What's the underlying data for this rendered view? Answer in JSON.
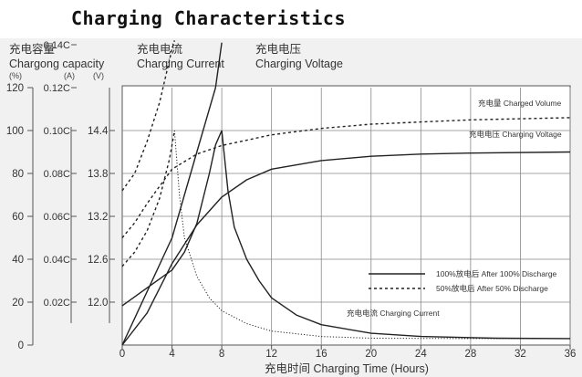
{
  "heading": "Charging Characteristics",
  "chart_data": {
    "type": "line",
    "title": "Charging Characteristics",
    "axes": {
      "capacity": {
        "label_cn": "充电容量",
        "label_en": "Chargong capacity",
        "unit": "(%)",
        "ticks": [
          "0",
          "20",
          "40",
          "60",
          "80",
          "100",
          "120"
        ],
        "range": [
          0,
          120
        ]
      },
      "current": {
        "unit": "(A)",
        "ticks": [
          "0.02C",
          "0.04C",
          "0.06C",
          "0.08C",
          "0.10C",
          "0.12C",
          "0.14C"
        ]
      },
      "voltage": {
        "label_cn_current": "充电电流",
        "label_en_current": "Charging Current",
        "label_cn_voltage": "充电电压",
        "label_en_voltage": "Charging Voltage",
        "unit": "(V)",
        "ticks": [
          "12.0",
          "12.6",
          "13.2",
          "13.8",
          "14.4"
        ]
      },
      "x": {
        "label": "充电时间 Charging Time (Hours)",
        "ticks": [
          "0",
          "4",
          "8",
          "12",
          "16",
          "20",
          "24",
          "28",
          "32",
          "36"
        ],
        "range": [
          0,
          36
        ]
      }
    },
    "curve_labels": {
      "charged_volume": "充电量 Charged Volume",
      "charging_voltage": "充电电压 Charging Voltage",
      "charging_current": "充电电流 Charging Current"
    },
    "legend": {
      "placement": "lower-right",
      "items": [
        {
          "name": "100%放电后 After 100% Discharge",
          "style": "solid"
        },
        {
          "name": "50%放电后 After 50% Discharge",
          "style": "dashed"
        }
      ]
    },
    "series": [
      {
        "name": "Charged Volume (100%)",
        "axis": "capacity",
        "style": "solid",
        "points": [
          [
            0,
            0
          ],
          [
            2,
            15
          ],
          [
            4,
            38
          ],
          [
            6,
            56
          ],
          [
            8,
            69
          ],
          [
            10,
            77
          ],
          [
            12,
            82
          ],
          [
            16,
            86
          ],
          [
            20,
            88
          ],
          [
            24,
            89
          ],
          [
            28,
            89.5
          ],
          [
            36,
            90
          ]
        ]
      },
      {
        "name": "Charged Volume (50%)",
        "axis": "capacity",
        "style": "dashed",
        "points": [
          [
            0,
            50
          ],
          [
            1,
            57
          ],
          [
            2,
            66
          ],
          [
            3,
            74
          ],
          [
            4,
            82
          ],
          [
            6,
            89
          ],
          [
            8,
            93
          ],
          [
            12,
            98
          ],
          [
            16,
            101
          ],
          [
            20,
            103
          ],
          [
            28,
            105
          ],
          [
            36,
            106
          ]
        ]
      },
      {
        "name": "Charging Voltage (100%)",
        "axis": "voltage",
        "style": "solid",
        "points": [
          [
            0,
            11.95
          ],
          [
            2,
            12.2
          ],
          [
            4,
            12.45
          ],
          [
            5,
            12.7
          ],
          [
            6,
            13.1
          ],
          [
            7,
            13.8
          ],
          [
            7.5,
            14.2
          ],
          [
            8,
            14.4
          ]
        ]
      },
      {
        "name": "Charging Voltage (50%)",
        "axis": "voltage",
        "style": "dashed",
        "points": [
          [
            0,
            12.5
          ],
          [
            1,
            12.7
          ],
          [
            2,
            13.0
          ],
          [
            3,
            13.45
          ],
          [
            3.8,
            14.0
          ],
          [
            4.2,
            14.4
          ]
        ]
      },
      {
        "name": "Charging Current (100%)",
        "axis": "current",
        "style": "solid",
        "points": [
          [
            0,
            0
          ],
          [
            2,
            0.025
          ],
          [
            4,
            0.05
          ],
          [
            6,
            0.09
          ],
          [
            7.5,
            0.12
          ],
          [
            8,
            0.141
          ]
        ]
      },
      {
        "name": "Charging Current (100%) taper",
        "axis": "current",
        "style": "solid",
        "points": [
          [
            8,
            0.1
          ],
          [
            8.5,
            0.072
          ],
          [
            9,
            0.055
          ],
          [
            10,
            0.04
          ],
          [
            11,
            0.03
          ],
          [
            12,
            0.022
          ],
          [
            14,
            0.014
          ],
          [
            16,
            0.0095
          ],
          [
            20,
            0.0055
          ],
          [
            24,
            0.004
          ],
          [
            30,
            0.0032
          ],
          [
            36,
            0.003
          ]
        ]
      },
      {
        "name": "Charging Current (50%)",
        "axis": "current",
        "style": "dashed",
        "points": [
          [
            0,
            0.072
          ],
          [
            1,
            0.08
          ],
          [
            2,
            0.095
          ],
          [
            3,
            0.113
          ],
          [
            4,
            0.138
          ],
          [
            4.2,
            0.142
          ]
        ]
      },
      {
        "name": "Charging Current (50%) taper",
        "axis": "current",
        "style": "dotted",
        "points": [
          [
            4.2,
            0.1
          ],
          [
            4.6,
            0.07
          ],
          [
            5,
            0.05
          ],
          [
            6,
            0.032
          ],
          [
            7,
            0.022
          ],
          [
            8,
            0.016
          ],
          [
            10,
            0.01
          ],
          [
            12,
            0.0065
          ],
          [
            16,
            0.004
          ],
          [
            20,
            0.0032
          ],
          [
            28,
            0.003
          ],
          [
            36,
            0.003
          ]
        ]
      }
    ]
  }
}
